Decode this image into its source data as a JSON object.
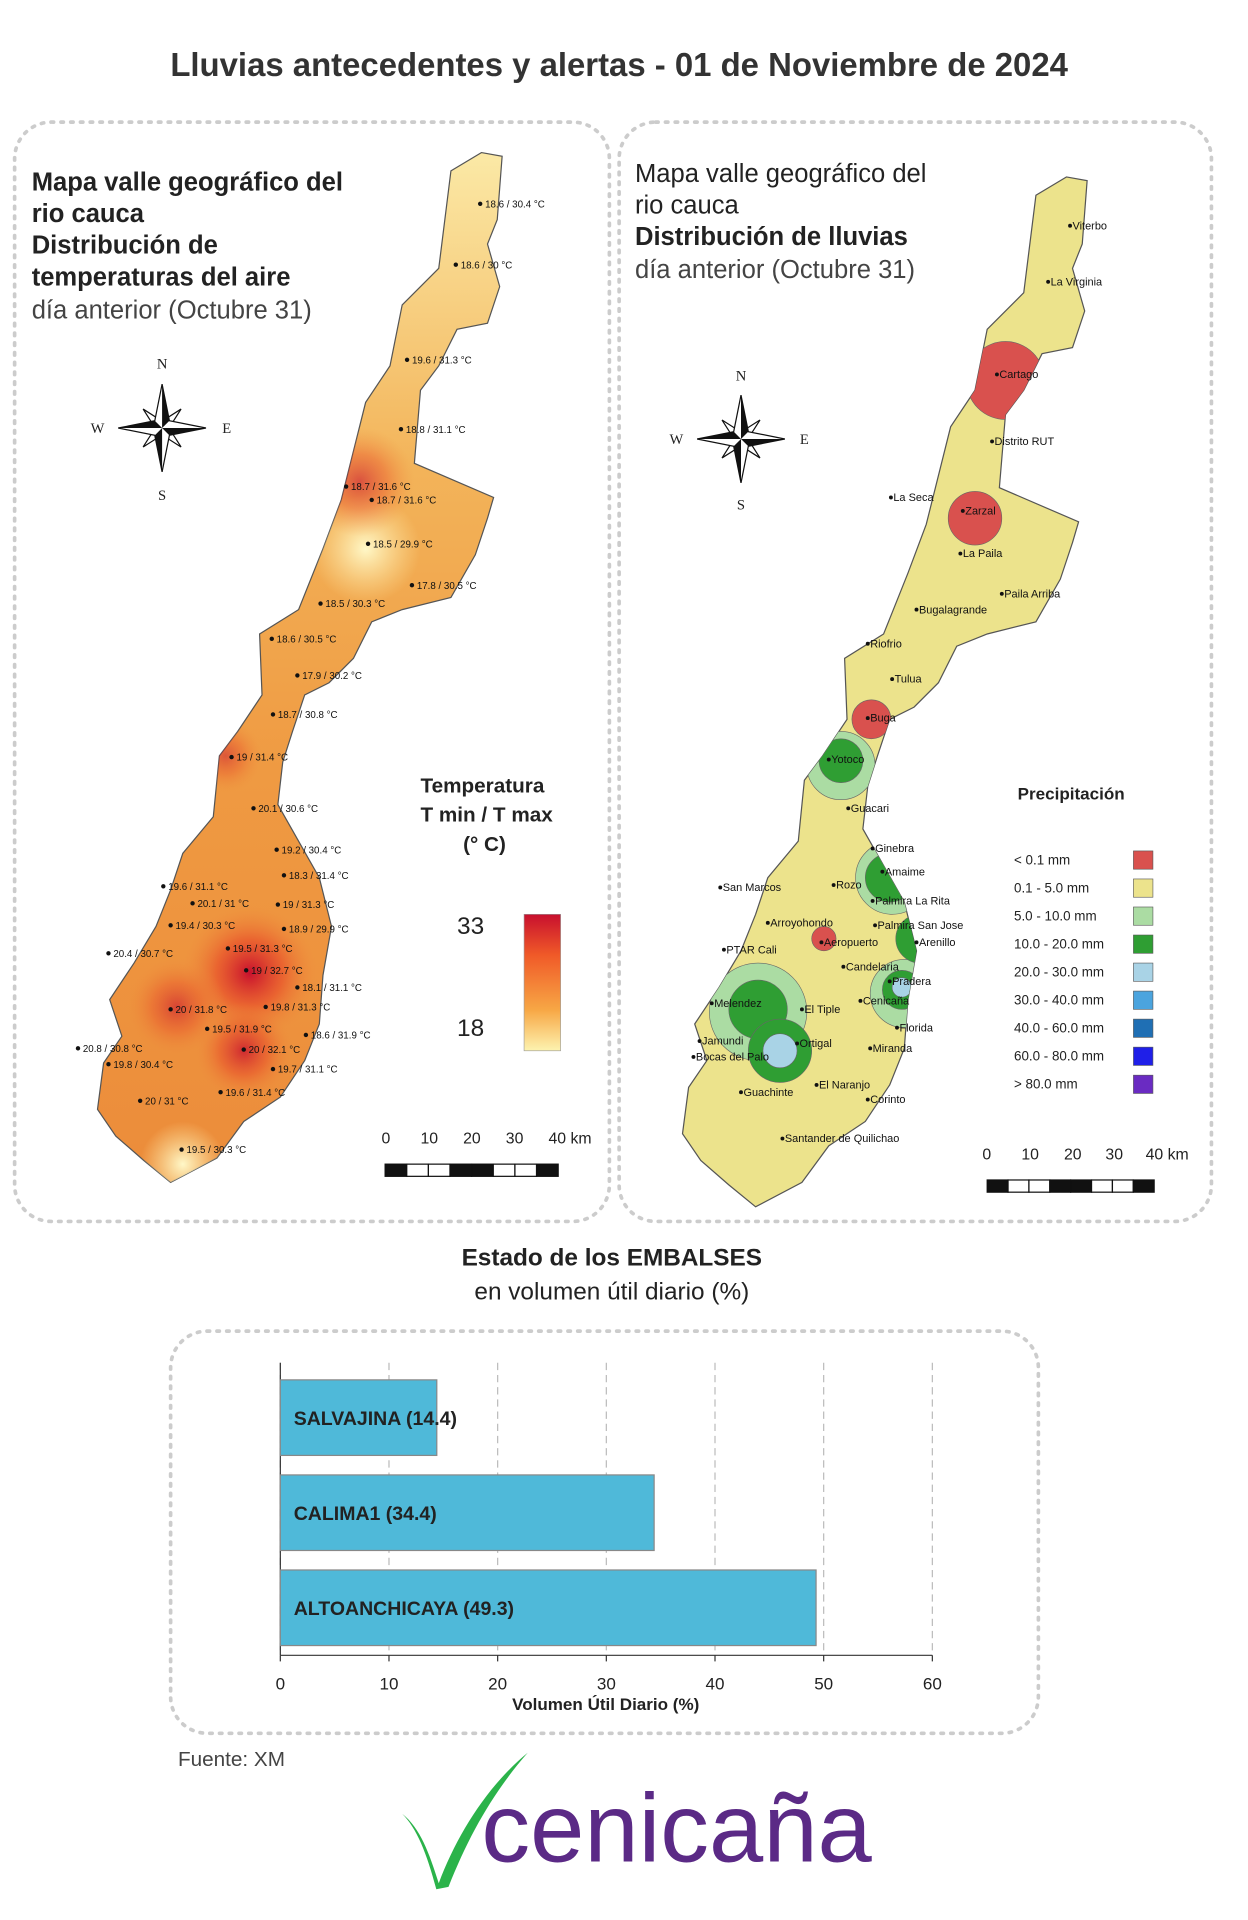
{
  "title": "Lluvias antecedentes y alertas - 01 de Noviembre de 2024",
  "compass": {
    "n": "N",
    "s": "S",
    "w": "W",
    "e": "E"
  },
  "temperature_map": {
    "heading": [
      "Mapa valle geográfico del",
      "rio cauca",
      "Distribución de",
      "temperaturas del aire",
      "día anterior (Octubre 31)"
    ],
    "stations": [
      "18.6 / 30.4 °C",
      "18.6 / 30 °C",
      "19.6 / 31.3 °C",
      "18.8 / 31.1 °C",
      "18.7 / 31.6 °C",
      "18.7 / 31.6 °C",
      "18.5 / 29.9 °C",
      "17.8 / 30.5 °C",
      "18.5 / 30.3 °C",
      "18.6 / 30.5 °C",
      "17.9 / 30.2 °C",
      "18.7 / 30.8 °C",
      "19 / 31.4 °C",
      "20.1 / 30.6 °C",
      "19.2 / 30.4 °C",
      "19.6 / 31.1 °C",
      "18.3 / 31.4 °C",
      "20.1 / 31 °C",
      "19 / 31.3 °C",
      "19.4 / 30.3 °C",
      "18.9 / 29.9 °C",
      "19.5 / 31.3 °C",
      "20.4 / 30.7 °C",
      "19 / 32.7 °C",
      "18.1 / 31.1 °C",
      "20 / 31.8 °C",
      "19.8 / 31.3 °C",
      "19.5 / 31.9 °C",
      "18.6 / 31.9 °C",
      "20.8 / 30.8 °C",
      "20 / 32.1 °C",
      "19.8 / 30.4 °C",
      "19.7 / 31.1 °C",
      "19.6 / 31.4 °C",
      "20 / 31 °C",
      "19.5 / 30.3 °C"
    ],
    "legend_title": [
      "Temperatura",
      "T min / T max",
      "(° C)"
    ],
    "legend_ticks": [
      33,
      18
    ],
    "legend_colors": [
      "#c8102e",
      "#f05a28",
      "#f7a745",
      "#fdf3b0"
    ],
    "scale_labels": [
      "0",
      "10",
      "20",
      "30",
      "40 km"
    ]
  },
  "rain_map": {
    "heading": [
      "Mapa valle geográfico del",
      "rio cauca",
      "Distribución de lluvias",
      "día anterior (Octubre 31)"
    ],
    "places": [
      "Viterbo",
      "La Virginia",
      "Cartago",
      "Distrito RUT",
      "La Seca",
      "Zarzal",
      "La Paila",
      "Paila Arriba",
      "Bugalagrande",
      "Riofrio",
      "Tulua",
      "Buga",
      "Yotoco",
      "Guacari",
      "Ginebra",
      "Amaime",
      "San Marcos",
      "Rozo",
      "Palmira La Rita",
      "Arroyohondo",
      "Palmira San Jose",
      "Aeropuerto",
      "Arenillo",
      "PTAR Cali",
      "Candelaria",
      "Pradera",
      "Melendez",
      "Cenicaña",
      "El Tiple",
      "Florida",
      "Jamundi",
      "Bocas del Palo",
      "Ortigal",
      "Miranda",
      "Guachinte",
      "El Naranjo",
      "Corinto",
      "Santander de Quilichao"
    ],
    "legend_title": "Precipitación",
    "legend": [
      {
        "label": "< 0.1 mm",
        "color": "#d9514e"
      },
      {
        "label": "0.1 - 5.0 mm",
        "color": "#ece38c"
      },
      {
        "label": "5.0 - 10.0 mm",
        "color": "#abdca3"
      },
      {
        "label": "10.0 - 20.0 mm",
        "color": "#2f9e33"
      },
      {
        "label": "20.0 - 30.0 mm",
        "color": "#a9d3e6"
      },
      {
        "label": "30.0 - 40.0 mm",
        "color": "#4ba4de"
      },
      {
        "label": "40.0 - 60.0 mm",
        "color": "#1f6fb4"
      },
      {
        "label": "60.0 - 80.0 mm",
        "color": "#1f1fe8"
      },
      {
        "label": "> 80.0 mm",
        "color": "#6a2bc2"
      }
    ],
    "scale_labels": [
      "0",
      "10",
      "20",
      "30",
      "40 km"
    ]
  },
  "chart_data": {
    "type": "hbar",
    "title": "Estado de los EMBALSES",
    "subtitle": "en volumen útil diario (%)",
    "categories": [
      "SALVAJINA (14.4)",
      "CALIMA1 (34.4)",
      "ALTOANCHICAYA (49.3)"
    ],
    "values": [
      14.4,
      34.4,
      49.3
    ],
    "color": "#4fb9d9",
    "xlim": [
      0,
      60
    ],
    "xticks": [
      0,
      10,
      20,
      30,
      40,
      50,
      60
    ],
    "xlabel": "Volumen Útil Diario (%)",
    "grid": true
  },
  "source": "Fuente: XM",
  "logo": "cenicaña"
}
